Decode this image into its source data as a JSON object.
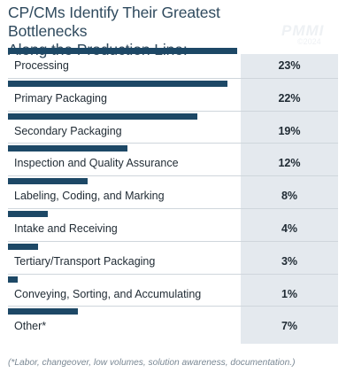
{
  "title_line1": "CP/CMs Identify Their Greatest Bottlenecks",
  "title_line2": "Along the Production Line:",
  "watermark": {
    "logo": "PMMI",
    "year": "©2024"
  },
  "footnote": "(*Labor, changeover, low volumes, solution awareness, documentation.)",
  "colors": {
    "bar": "#1d4866",
    "percent_column": "#e4e9ee",
    "title": "#2f4a5e"
  },
  "chart_data": {
    "type": "bar",
    "orientation": "horizontal",
    "title": "CP/CMs Identify Their Greatest Bottlenecks Along the Production Line:",
    "categories": [
      "Processing",
      "Primary Packaging",
      "Secondary Packaging",
      "Inspection and Quality Assurance",
      "Labeling, Coding, and Marking",
      "Intake and Receiving",
      "Tertiary/Transport Packaging",
      "Conveying, Sorting, and Accumulating",
      "Other*"
    ],
    "values": [
      23,
      22,
      19,
      12,
      8,
      4,
      3,
      1,
      7
    ],
    "value_labels": [
      "23%",
      "22%",
      "19%",
      "12%",
      "8%",
      "4%",
      "3%",
      "1%",
      "7%"
    ],
    "unit": "%",
    "xlim": [
      0,
      23
    ],
    "grid": false,
    "legend": "none"
  }
}
